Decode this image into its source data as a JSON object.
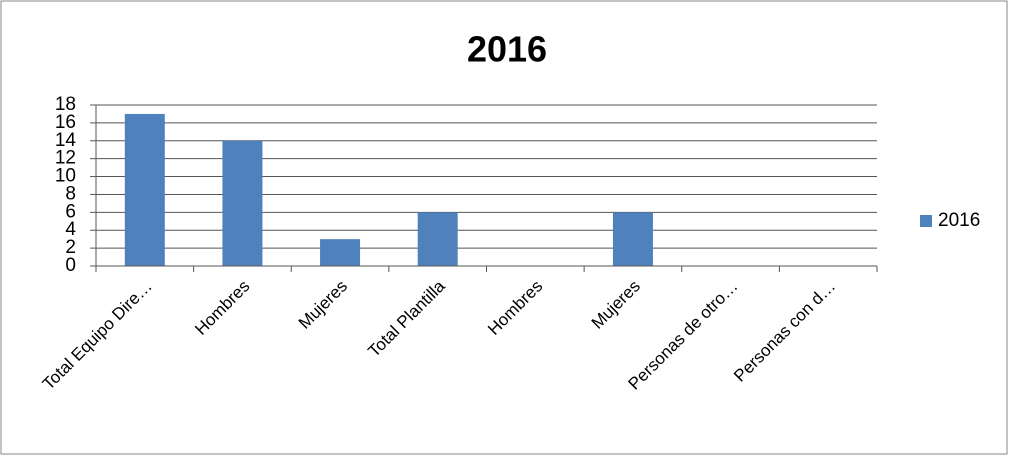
{
  "chart_data": {
    "type": "bar",
    "title": "2016",
    "categories": [
      "Total Equipo Dire…",
      "Hombres",
      "Mujeres",
      "Total Plantilla",
      "Hombres",
      "Mujeres",
      "Personas de otro…",
      "Personas  con d…"
    ],
    "series": [
      {
        "name": "2016",
        "color": "#4f81bd",
        "values": [
          17,
          14,
          3,
          6,
          0,
          6,
          0,
          0
        ]
      }
    ],
    "ylim": [
      0,
      18
    ],
    "yticks": [
      0,
      2,
      4,
      6,
      8,
      10,
      12,
      14,
      16,
      18
    ],
    "grid": true,
    "legend": "right"
  }
}
